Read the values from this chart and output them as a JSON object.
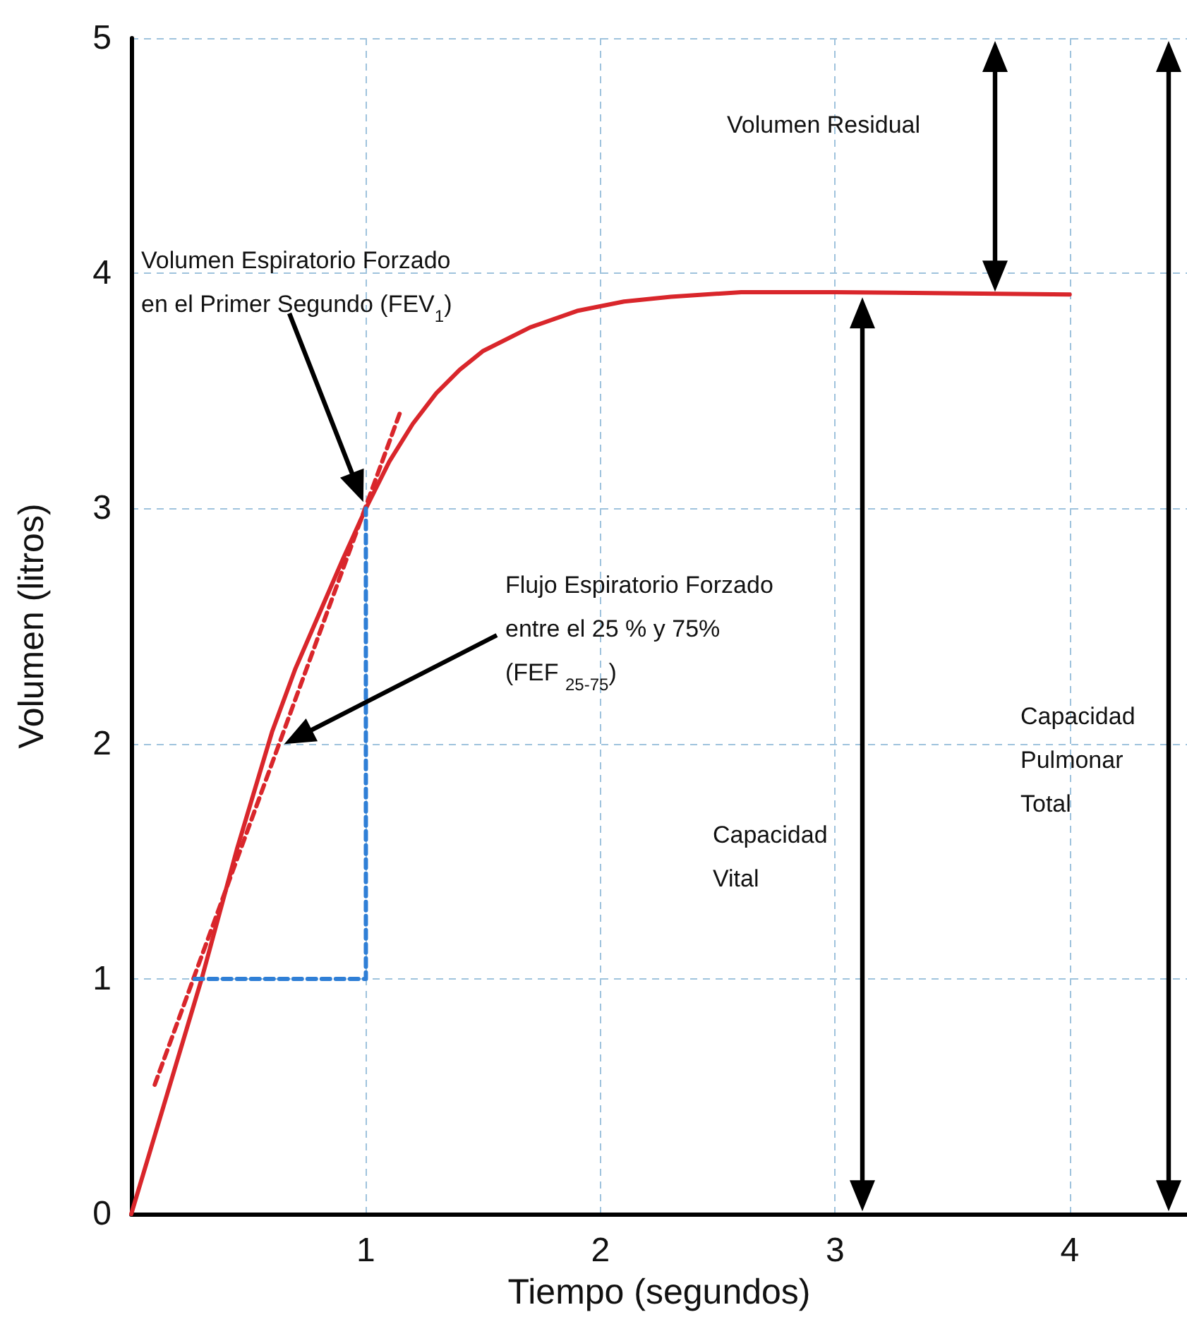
{
  "chart_data": {
    "type": "line",
    "xlabel": "Tiempo (segundos)",
    "ylabel": "Volumen (litros)",
    "xlim": [
      0,
      4.5
    ],
    "xticks": [
      {
        "value": 0,
        "label": null
      },
      1,
      2,
      3,
      4
    ],
    "ylim": [
      0,
      5
    ],
    "yticks": [
      0,
      1,
      2,
      3,
      4,
      5
    ],
    "grid": true,
    "marker": "none",
    "series": [
      {
        "color": "#d9262b",
        "line_style": "solid",
        "x": [
          0,
          0.3,
          0.45,
          0.6,
          0.7,
          0.8,
          0.9,
          1,
          1.1,
          1.2,
          1.3,
          1.4,
          1.5,
          1.7,
          1.9,
          2.1,
          2.3,
          2.6,
          3,
          4
        ],
        "values": [
          0,
          1,
          1.55,
          2.05,
          2.32,
          2.55,
          2.78,
          3,
          3.2,
          3.36,
          3.49,
          3.59,
          3.67,
          3.77,
          3.84,
          3.88,
          3.9,
          3.92,
          3.92,
          3.91
        ]
      },
      {
        "color": "#d9262b",
        "line_style": "dashed",
        "x": [
          0.1,
          1.15
        ],
        "values": [
          0.55,
          3.42
        ]
      },
      {
        "color": "#2f7fd6",
        "line_style": "dashed",
        "x": [
          0.27,
          1,
          1
        ],
        "values": [
          1,
          1,
          3
        ]
      }
    ],
    "annotations": [
      "Volumen Espiratorio Forzado\nen el Primer Segundo (FEV$_{1}$)",
      "Flujo Espiratorio Forzado\nentre el 25 % y 75%\n(FEF $_{25-75}$)",
      "Volumen Residual",
      "Capacidad\nVital",
      "Capacidad\nPulmonar\nTotal"
    ]
  }
}
